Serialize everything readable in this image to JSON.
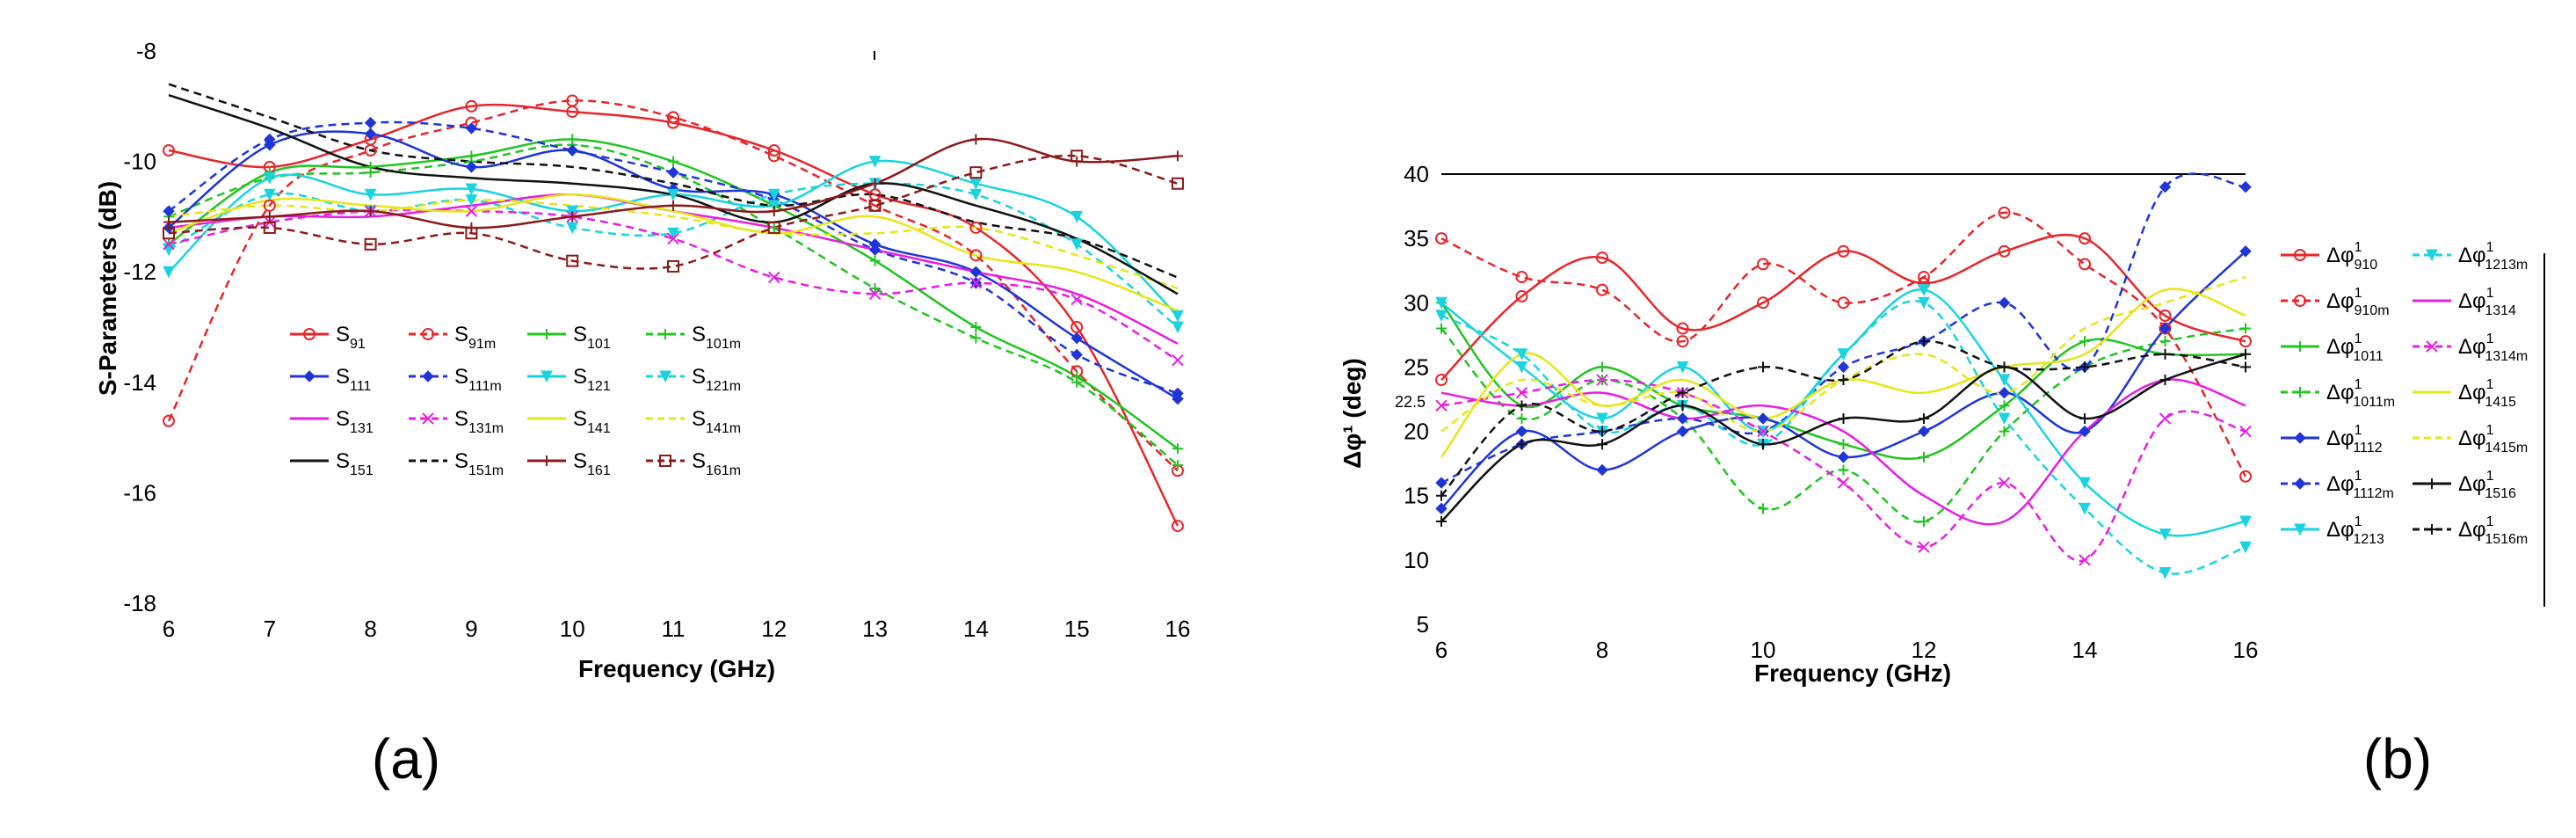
{
  "chart_data": [
    {
      "type": "line",
      "panel_label": "(a)",
      "xlabel": "Frequency (GHz)",
      "ylabel": "S-Parameters (dB)",
      "xlim": [
        6,
        16
      ],
      "ylim": [
        -18,
        -8
      ],
      "xticks": [
        "6",
        "7",
        "8",
        "9",
        "10",
        "11",
        "12",
        "13",
        "14",
        "15",
        "16"
      ],
      "yticks": [
        "-8",
        "-10",
        "-12",
        "-14",
        "-16",
        "-18"
      ],
      "x": [
        6,
        7,
        8,
        9,
        10,
        11,
        12,
        13,
        14,
        15,
        16
      ],
      "series": [
        {
          "name": "S",
          "sub": "91",
          "color": "#e6262b",
          "dash": false,
          "marker": "circle",
          "values": [
            -9.8,
            -10.1,
            -9.6,
            -9.0,
            -9.1,
            -9.3,
            -9.8,
            -10.6,
            -11.2,
            -13.0,
            -16.6
          ]
        },
        {
          "name": "S",
          "sub": "91m",
          "color": "#e6262b",
          "dash": true,
          "marker": "circle",
          "values": [
            -14.7,
            -10.8,
            -9.8,
            -9.3,
            -8.9,
            -9.2,
            -9.9,
            -10.8,
            -11.7,
            -13.8,
            -15.6
          ]
        },
        {
          "name": "S",
          "sub": "101",
          "color": "#21c421",
          "dash": false,
          "marker": "plus",
          "values": [
            -11.5,
            -10.2,
            -10.1,
            -9.9,
            -9.6,
            -10.0,
            -10.8,
            -11.8,
            -13.0,
            -13.9,
            -15.2
          ]
        },
        {
          "name": "S",
          "sub": "101m",
          "color": "#21c421",
          "dash": true,
          "marker": "plus",
          "values": [
            -11.0,
            -10.3,
            -10.2,
            -10.0,
            -9.7,
            -10.2,
            -11.2,
            -12.3,
            -13.2,
            -14.0,
            -15.5
          ]
        },
        {
          "name": "S",
          "sub": "111",
          "color": "#1f35d8",
          "dash": false,
          "marker": "star",
          "values": [
            -11.2,
            -9.7,
            -9.5,
            -10.1,
            -9.8,
            -10.5,
            -10.6,
            -11.5,
            -12.0,
            -13.2,
            -14.3
          ]
        },
        {
          "name": "S",
          "sub": "111m",
          "color": "#1f35d8",
          "dash": true,
          "marker": "star",
          "values": [
            -10.9,
            -9.6,
            -9.3,
            -9.4,
            -9.8,
            -10.2,
            -10.7,
            -11.6,
            -12.2,
            -13.5,
            -14.2
          ]
        },
        {
          "name": "S",
          "sub": "121",
          "color": "#19d4e0",
          "dash": false,
          "marker": "tri",
          "values": [
            -12.0,
            -10.3,
            -10.6,
            -10.5,
            -10.9,
            -10.6,
            -10.8,
            -10.0,
            -10.4,
            -11.0,
            -12.8
          ]
        },
        {
          "name": "S",
          "sub": "121m",
          "color": "#19d4e0",
          "dash": true,
          "marker": "tri",
          "values": [
            -11.6,
            -10.6,
            -10.9,
            -10.7,
            -11.2,
            -11.3,
            -10.6,
            -10.4,
            -10.6,
            -11.5,
            -13.0
          ]
        },
        {
          "name": "S",
          "sub": "131",
          "color": "#e61fe0",
          "dash": false,
          "marker": "none",
          "values": [
            -11.2,
            -11.0,
            -11.0,
            -10.8,
            -10.6,
            -10.9,
            -11.2,
            -11.6,
            -12.0,
            -12.4,
            -13.3
          ]
        },
        {
          "name": "S",
          "sub": "131m",
          "color": "#e61fe0",
          "dash": true,
          "marker": "x",
          "values": [
            -11.5,
            -11.1,
            -10.9,
            -10.9,
            -11.0,
            -11.4,
            -12.1,
            -12.4,
            -12.2,
            -12.5,
            -13.6
          ]
        },
        {
          "name": "S",
          "sub": "141",
          "color": "#e6e619",
          "dash": false,
          "marker": "none",
          "values": [
            -11.3,
            -10.7,
            -10.8,
            -10.9,
            -10.6,
            -10.9,
            -11.3,
            -11.0,
            -11.7,
            -12.0,
            -12.7
          ]
        },
        {
          "name": "S",
          "sub": "141m",
          "color": "#e6e619",
          "dash": true,
          "marker": "none",
          "values": [
            -11.0,
            -10.8,
            -10.9,
            -10.7,
            -10.8,
            -11.0,
            -11.3,
            -11.3,
            -11.2,
            -11.7,
            -12.3
          ]
        },
        {
          "name": "S",
          "sub": "151",
          "color": "#111111",
          "dash": false,
          "marker": "none",
          "values": [
            -8.8,
            -9.4,
            -10.1,
            -10.3,
            -10.4,
            -10.6,
            -11.1,
            -10.4,
            -10.8,
            -11.4,
            -12.4
          ]
        },
        {
          "name": "S",
          "sub": "151m",
          "color": "#111111",
          "dash": true,
          "marker": "none",
          "values": [
            -8.6,
            -9.2,
            -9.8,
            -10.0,
            -10.1,
            -10.4,
            -10.8,
            -10.6,
            -11.1,
            -11.4,
            -12.1
          ]
        },
        {
          "name": "S",
          "sub": "161",
          "color": "#8b1a1a",
          "dash": false,
          "marker": "plus",
          "values": [
            -11.1,
            -11.0,
            -10.9,
            -11.2,
            -11.0,
            -10.8,
            -10.9,
            -10.4,
            -9.6,
            -10.0,
            -9.9
          ]
        },
        {
          "name": "S",
          "sub": "161m",
          "color": "#8b1a1a",
          "dash": true,
          "marker": "square",
          "values": [
            -11.3,
            -11.2,
            -11.5,
            -11.3,
            -11.8,
            -11.9,
            -11.2,
            -10.8,
            -10.2,
            -9.9,
            -10.4
          ]
        }
      ]
    },
    {
      "type": "line",
      "panel_label": "(b)",
      "xlabel": "Frequency (GHz)",
      "ylabel": "Δφ¹ (deg)",
      "xlim": [
        6,
        16
      ],
      "ylim": [
        5,
        40
      ],
      "xticks": [
        "6",
        "8",
        "10",
        "12",
        "14",
        "16"
      ],
      "yticks": [
        "5",
        "10",
        "15",
        "20",
        "22.5",
        "25",
        "30",
        "35",
        "40"
      ],
      "x": [
        6,
        7,
        8,
        9,
        10,
        11,
        12,
        13,
        14,
        15,
        16
      ],
      "series": [
        {
          "name": "Δφ",
          "sup": "1",
          "sub": "910",
          "color": "#e6262b",
          "dash": false,
          "marker": "circle",
          "values": [
            24,
            30.5,
            33.5,
            28,
            30,
            34,
            31.5,
            34,
            35,
            29,
            27
          ]
        },
        {
          "name": "Δφ",
          "sup": "1",
          "sub": "910m",
          "color": "#e6262b",
          "dash": true,
          "marker": "circle",
          "values": [
            35,
            32,
            31,
            27,
            33,
            30,
            32,
            37,
            33,
            28,
            16.5
          ]
        },
        {
          "name": "Δφ",
          "sup": "1",
          "sub": "1011",
          "color": "#21c421",
          "dash": false,
          "marker": "plus",
          "values": [
            30,
            22,
            25,
            22,
            21,
            19,
            18,
            22,
            27,
            26,
            26
          ]
        },
        {
          "name": "Δφ",
          "sup": "1",
          "sub": "1011m",
          "color": "#21c421",
          "dash": true,
          "marker": "plus",
          "values": [
            28,
            21,
            24,
            21,
            14,
            17,
            13,
            20,
            25,
            27,
            28
          ]
        },
        {
          "name": "Δφ",
          "sup": "1",
          "sub": "1112",
          "color": "#1f35d8",
          "dash": false,
          "marker": "star",
          "values": [
            14,
            20,
            17,
            20,
            21,
            18,
            20,
            23,
            20,
            28,
            34
          ]
        },
        {
          "name": "Δφ",
          "sup": "1",
          "sub": "1112m",
          "color": "#1f35d8",
          "dash": true,
          "marker": "star",
          "values": [
            16,
            19,
            20,
            21,
            20,
            25,
            27,
            30,
            25,
            39,
            39
          ]
        },
        {
          "name": "Δφ",
          "sup": "1",
          "sub": "1213",
          "color": "#19d4e0",
          "dash": false,
          "marker": "tri",
          "values": [
            30,
            25,
            21,
            25,
            20,
            26,
            31,
            24,
            16,
            12,
            13
          ]
        },
        {
          "name": "Δφ",
          "sup": "1",
          "sub": "1213m",
          "color": "#19d4e0",
          "dash": true,
          "marker": "tri",
          "values": [
            29,
            26,
            20,
            22,
            19,
            26,
            30,
            21,
            14,
            9,
            11
          ]
        },
        {
          "name": "Δφ",
          "sup": "1",
          "sub": "1314",
          "color": "#e61fe0",
          "dash": false,
          "marker": "none",
          "values": [
            23,
            22,
            23,
            21,
            22,
            20,
            15,
            13,
            20,
            24,
            22
          ]
        },
        {
          "name": "Δφ",
          "sup": "1",
          "sub": "1314m",
          "color": "#e61fe0",
          "dash": true,
          "marker": "x",
          "values": [
            22,
            23,
            24,
            23,
            20,
            16,
            11,
            16,
            10,
            21,
            20
          ]
        },
        {
          "name": "Δφ",
          "sup": "1",
          "sub": "1415",
          "color": "#e6e619",
          "dash": false,
          "marker": "none",
          "values": [
            18,
            26,
            22,
            24,
            21,
            24,
            23,
            25,
            26,
            31,
            29
          ]
        },
        {
          "name": "Δφ",
          "sup": "1",
          "sub": "1415m",
          "color": "#e6e619",
          "dash": true,
          "marker": "none",
          "values": [
            20,
            24,
            22,
            23,
            20,
            24,
            26,
            23,
            28,
            30,
            32
          ]
        },
        {
          "name": "Δφ",
          "sup": "1",
          "sub": "1516",
          "color": "#111111",
          "dash": false,
          "marker": "plus",
          "values": [
            13,
            19,
            19,
            22,
            19,
            21,
            21,
            25,
            21,
            24,
            26
          ]
        },
        {
          "name": "Δφ",
          "sup": "1",
          "sub": "1516m",
          "color": "#111111",
          "dash": true,
          "marker": "plus",
          "values": [
            15,
            22,
            20,
            23,
            25,
            24,
            27,
            25,
            25,
            26,
            25
          ]
        }
      ]
    }
  ]
}
